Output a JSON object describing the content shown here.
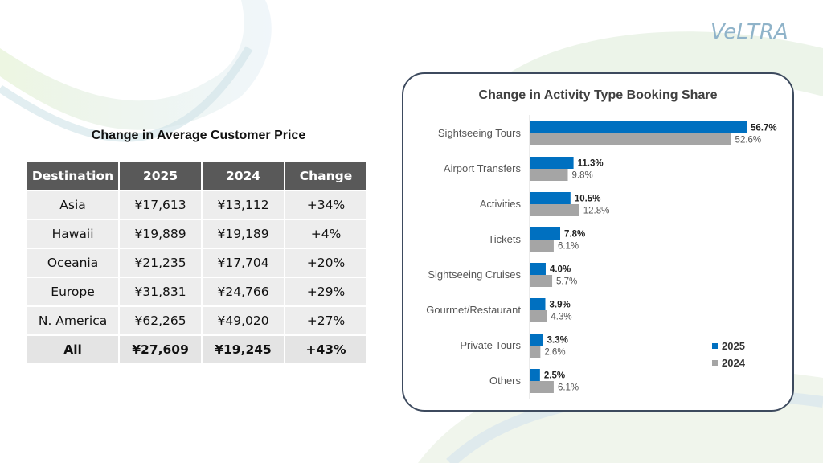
{
  "logo": {
    "text": "VeLTRA"
  },
  "price_table": {
    "title": "Change in Average Customer Price",
    "headers": [
      "Destination",
      "2025",
      "2024",
      "Change"
    ],
    "rows": [
      [
        "Asia",
        "¥17,613",
        "¥13,112",
        "+34%"
      ],
      [
        "Hawaii",
        "¥19,889",
        "¥19,189",
        "+4%"
      ],
      [
        "Oceania",
        "¥21,235",
        "¥17,704",
        "+20%"
      ],
      [
        "Europe",
        "¥31,831",
        "¥24,766",
        "+29%"
      ],
      [
        "N. America",
        "¥62,265",
        "¥49,020",
        "+27%"
      ],
      [
        "All",
        "¥27,609",
        "¥19,245",
        "+43%"
      ]
    ]
  },
  "chart_data": {
    "type": "bar",
    "orientation": "horizontal",
    "title": "Change in Activity Type Booking Share",
    "categories": [
      "Sightseeing Tours",
      "Airport Transfers",
      "Activities",
      "Tickets",
      "Sightseeing Cruises",
      "Gourmet/Restaurant",
      "Private Tours",
      "Others"
    ],
    "series": [
      {
        "name": "2025",
        "values": [
          56.7,
          11.3,
          10.5,
          7.8,
          4.0,
          3.9,
          3.3,
          2.5
        ],
        "labels": [
          "56.7%",
          "11.3%",
          "10.5%",
          "7.8%",
          "4.0%",
          "3.9%",
          "3.3%",
          "2.5%"
        ],
        "color": "#0070c0"
      },
      {
        "name": "2024",
        "values": [
          52.6,
          9.8,
          12.8,
          6.1,
          5.7,
          4.3,
          2.6,
          6.1
        ],
        "labels": [
          "52.6%",
          "9.8%",
          "12.8%",
          "6.1%",
          "5.7%",
          "4.3%",
          "2.6%",
          "6.1%"
        ],
        "color": "#a5a5a5"
      }
    ],
    "xlim": [
      0,
      56.7
    ],
    "legend_position": "bottom-right",
    "grid": false
  }
}
